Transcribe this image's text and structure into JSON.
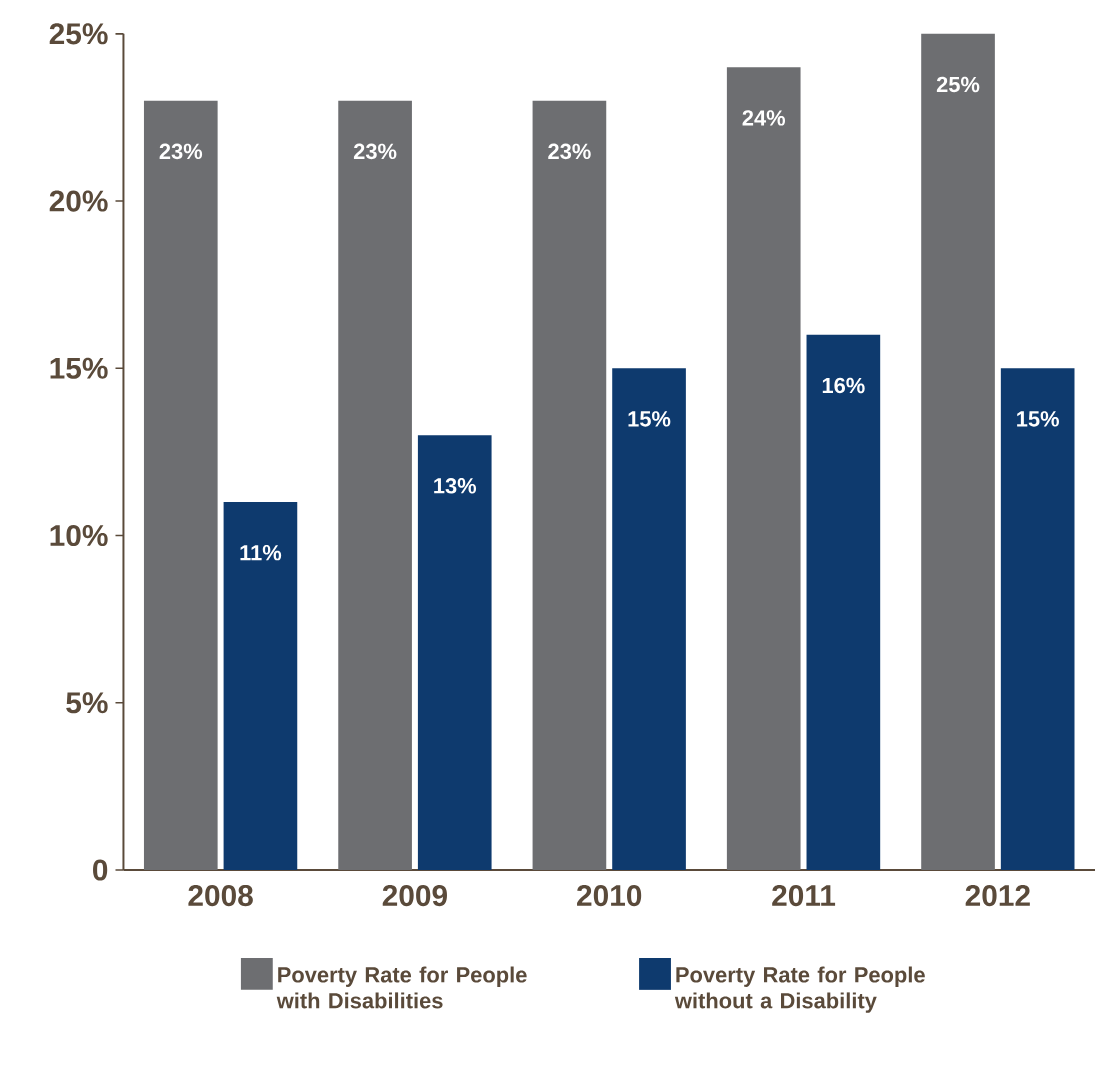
{
  "chart_data": {
    "type": "bar",
    "categories": [
      "2008",
      "2009",
      "2010",
      "2011",
      "2012"
    ],
    "series": [
      {
        "name": "Poverty Rate for People with Disabilities",
        "color": "#6d6e71",
        "values": [
          23,
          23,
          23,
          24,
          25
        ],
        "value_labels": [
          "23%",
          "23%",
          "23%",
          "24%",
          "25%"
        ]
      },
      {
        "name": "Poverty Rate for People without a Disability",
        "color": "#0e3a6e",
        "values": [
          11,
          13,
          15,
          16,
          15
        ],
        "value_labels": [
          "11%",
          "13%",
          "15%",
          "16%",
          "15%"
        ]
      }
    ],
    "ylim": [
      0,
      25
    ],
    "yticks": [
      0,
      {
        "value": 5,
        "label": "5%"
      },
      {
        "value": 10,
        "label": "10%"
      },
      {
        "value": 15,
        "label": "15%"
      },
      {
        "value": 20,
        "label": "20%"
      },
      {
        "value": 25,
        "label": "25%"
      }
    ],
    "grid": false,
    "legend": "bottom"
  }
}
